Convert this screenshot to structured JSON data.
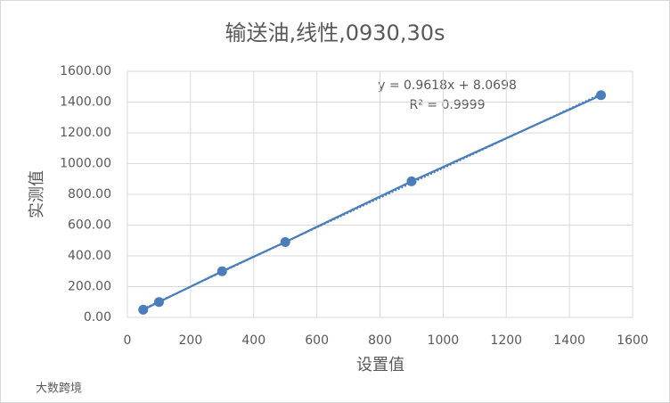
{
  "chart_data": {
    "type": "scatter",
    "title": "输送油,线性,0930,30s",
    "x_label": "设置值",
    "y_label": "实测值",
    "x": [
      50,
      100,
      300,
      500,
      900,
      1500
    ],
    "values": [
      50,
      100,
      300,
      490,
      885,
      1445
    ],
    "color": "#4a7ebb",
    "xlim": [
      0,
      1600
    ],
    "xticks": [
      0,
      200,
      400,
      600,
      800,
      1000,
      1200,
      1400,
      1600
    ],
    "ylim": [
      0,
      1600
    ],
    "yticks": [
      {
        "value": 0,
        "label": "0.00"
      },
      {
        "value": 200,
        "label": "200.00"
      },
      {
        "value": 400,
        "label": "400.00"
      },
      {
        "value": 600,
        "label": "600.00"
      },
      {
        "value": 800,
        "label": "800.00"
      },
      {
        "value": 1000,
        "label": "1000.00"
      },
      {
        "value": 1200,
        "label": "1200.00"
      },
      {
        "value": 1400,
        "label": "1400.00"
      },
      {
        "value": 1600,
        "label": "1600.00"
      }
    ],
    "grid": true,
    "trendline": {
      "equation": "y = 0.9618x + 8.0698",
      "r_squared": "R² = 0.9999"
    },
    "watermark": "大数跨境"
  }
}
